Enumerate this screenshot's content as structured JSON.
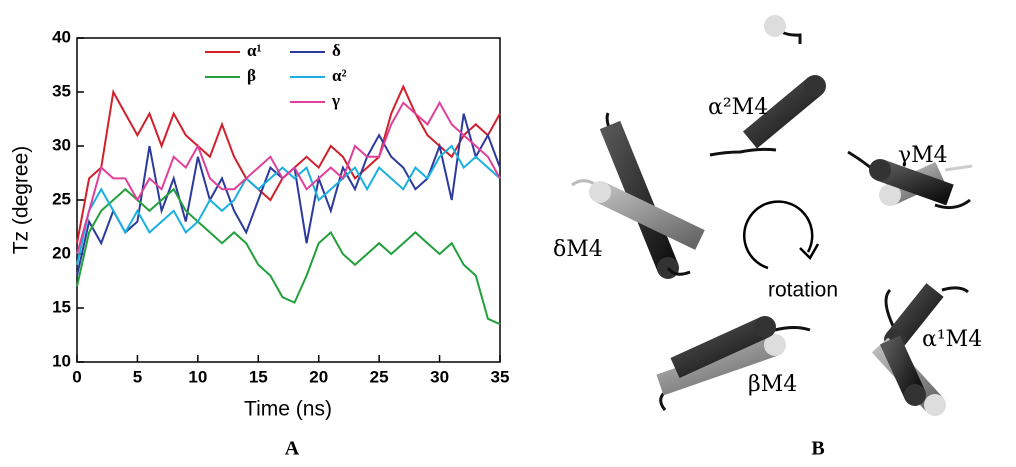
{
  "chart_data": {
    "type": "line",
    "panel_label": "A",
    "x_label": "Time (ns)",
    "y_label": "Tz (degree)",
    "x": [
      0,
      1,
      2,
      3,
      4,
      5,
      6,
      7,
      8,
      9,
      10,
      11,
      12,
      13,
      14,
      15,
      16,
      17,
      18,
      19,
      20,
      21,
      22,
      23,
      24,
      25,
      26,
      27,
      28,
      29,
      30,
      31,
      32,
      33,
      34,
      35
    ],
    "xlim": [
      0,
      35
    ],
    "xticks": [
      0,
      5,
      10,
      15,
      20,
      25,
      30,
      35
    ],
    "ylim": [
      10,
      40
    ],
    "yticks": [
      10,
      15,
      20,
      25,
      30,
      35,
      40
    ],
    "series": [
      {
        "name": "α¹",
        "color": "#d0202a",
        "values": [
          21,
          27,
          28,
          35,
          33,
          31,
          33,
          30,
          33,
          31,
          30,
          29,
          32,
          29,
          27,
          26,
          25,
          27,
          28,
          29,
          28,
          30,
          29,
          27,
          28,
          29,
          33,
          35.5,
          33,
          31,
          30,
          29,
          31,
          32,
          31,
          33
        ]
      },
      {
        "name": "δ",
        "color": "#2b3a9c",
        "values": [
          18,
          23,
          21,
          24,
          22,
          23,
          30,
          24,
          27,
          23,
          29,
          25,
          27,
          24,
          22,
          25,
          28,
          27,
          28,
          21,
          27,
          24,
          28,
          26,
          29,
          31,
          29,
          28,
          26,
          27,
          30,
          25,
          33,
          29,
          31,
          28
        ]
      },
      {
        "name": "β",
        "color": "#22a03c",
        "values": [
          17,
          22,
          24,
          25,
          26,
          25,
          24,
          25,
          26,
          24,
          23,
          22,
          21,
          22,
          21,
          19,
          18,
          16,
          15.5,
          18,
          21,
          22,
          20,
          19,
          20,
          21,
          20,
          21,
          22,
          21,
          20,
          21,
          19,
          18,
          14,
          13.5
        ]
      },
      {
        "name": "α²",
        "color": "#1ab0e0",
        "values": [
          19,
          24,
          26,
          24,
          22,
          24,
          22,
          23,
          24,
          22,
          23,
          25,
          24,
          25,
          27,
          26,
          27,
          28,
          27,
          28,
          25,
          26,
          27,
          28,
          26,
          28,
          27,
          26,
          28,
          27,
          29,
          30,
          28,
          29,
          28,
          27
        ]
      },
      {
        "name": "γ",
        "color": "#e0409a",
        "values": [
          20,
          24,
          28,
          27,
          27,
          25,
          27,
          26,
          29,
          28,
          30,
          27,
          26,
          26,
          27,
          28,
          29,
          27,
          28,
          26,
          27,
          28,
          27,
          30,
          29,
          29,
          32,
          34,
          33,
          32,
          34,
          32,
          31,
          30,
          29,
          27
        ]
      }
    ]
  },
  "diagram": {
    "panel_label": "B",
    "center_label": "rotation",
    "labels": [
      "α²M4",
      "γM4",
      "δM4",
      "βM4",
      "α¹M4"
    ]
  }
}
